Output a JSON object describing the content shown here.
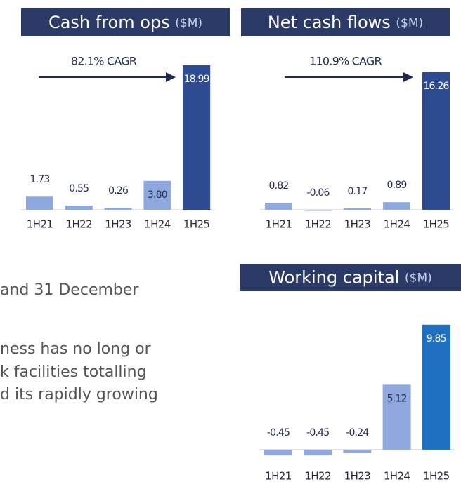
{
  "chart_data": [
    {
      "type": "bar",
      "title": "Cash from ops",
      "unit": "($M)",
      "annotation": "82.1% CAGR",
      "categories": [
        "1H21",
        "1H22",
        "1H23",
        "1H24",
        "1H25"
      ],
      "values": [
        1.73,
        0.55,
        0.26,
        3.8,
        18.99
      ],
      "value_labels": [
        "1.73",
        "0.55",
        "0.26",
        "3.80",
        "18.99"
      ],
      "colors": [
        "#8fa9de",
        "#8fa9de",
        "#8fa9de",
        "#8fa9de",
        "#2e4b91"
      ],
      "ylim": [
        0,
        20
      ]
    },
    {
      "type": "bar",
      "title": "Net cash flows",
      "unit": "($M)",
      "annotation": "110.9% CAGR",
      "categories": [
        "1H21",
        "1H22",
        "1H23",
        "1H24",
        "1H25"
      ],
      "values": [
        0.82,
        -0.06,
        0.17,
        0.89,
        16.26
      ],
      "value_labels": [
        "0.82",
        "-0.06",
        "0.17",
        "0.89",
        "16.26"
      ],
      "colors": [
        "#8fa9de",
        "#8fa9de",
        "#8fa9de",
        "#8fa9de",
        "#2e4b91"
      ],
      "ylim": [
        -1,
        17
      ]
    },
    {
      "type": "bar",
      "title": "Working capital",
      "unit": "($M)",
      "categories": [
        "1H21",
        "1H22",
        "1H23",
        "1H24",
        "1H25"
      ],
      "values": [
        -0.45,
        -0.45,
        -0.24,
        5.12,
        9.85
      ],
      "value_labels": [
        "-0.45",
        "-0.45",
        "-0.24",
        "5.12",
        "9.85"
      ],
      "colors": [
        "#8fa9de",
        "#8fa9de",
        "#8fa9de",
        "#8fa9de",
        "#1f70c1"
      ],
      "ylim": [
        -1,
        11
      ]
    }
  ],
  "text": [
    "and 31 December",
    "ness has no long or",
    "k facilities totalling",
    "d its rapidly growing"
  ]
}
